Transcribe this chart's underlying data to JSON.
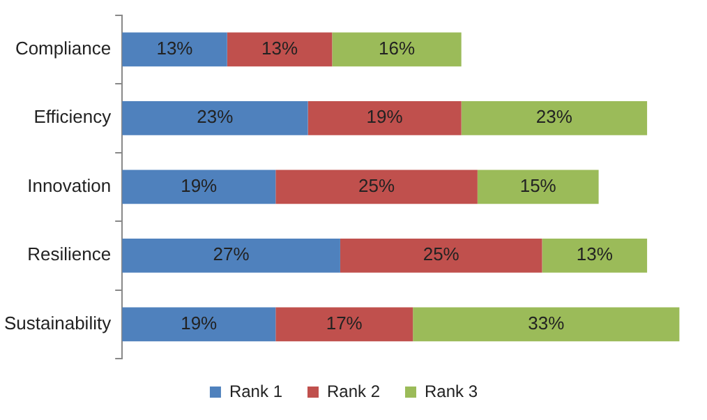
{
  "chart_data": {
    "type": "bar",
    "orientation": "horizontal",
    "stacked": true,
    "legend": "bottom",
    "tick_labels": "y",
    "categories": [
      "Compliance",
      "Efficiency",
      "Innovation",
      "Resilience",
      "Sustainability"
    ],
    "series": [
      {
        "name": "Rank 1",
        "color": "#4f81bd",
        "values": [
          13,
          23,
          19,
          27,
          19
        ],
        "value_labels": [
          "13%",
          "23%",
          "19%",
          "27%",
          "19%"
        ]
      },
      {
        "name": "Rank 2",
        "color": "#c0504d",
        "values": [
          13,
          19,
          25,
          25,
          17
        ],
        "value_labels": [
          "13%",
          "19%",
          "25%",
          "25%",
          "17%"
        ]
      },
      {
        "name": "Rank 3",
        "color": "#9bbb59",
        "values": [
          16,
          23,
          15,
          13,
          33
        ],
        "value_labels": [
          "16%",
          "23%",
          "15%",
          "13%",
          "33%"
        ]
      }
    ]
  }
}
